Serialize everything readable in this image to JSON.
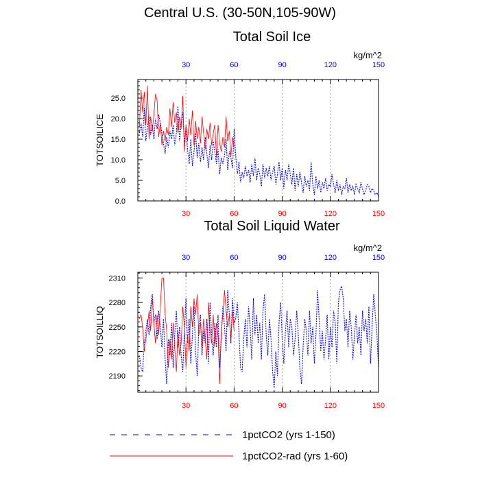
{
  "page_title": "Central U.S. (30-50N,105-90W)",
  "legend": {
    "entries": [
      {
        "label": "1pctCO2 (yrs 1-150)",
        "color": "#0000ff",
        "dashed": true
      },
      {
        "label": "1pctCO2-rad (yrs 1-60)",
        "color": "#ff0000",
        "dashed": false
      }
    ]
  },
  "chart_data": [
    {
      "type": "line",
      "title": "Total Soil Ice",
      "units": "kg/m^2",
      "ylabel": "TOTSOILICE",
      "xlim": [
        0,
        150
      ],
      "ylim": [
        0,
        29.5
      ],
      "yticks": [
        0,
        5,
        10,
        15,
        20,
        25
      ],
      "ytick_labels": [
        "0.0",
        "5.0",
        "10.0",
        "15.0",
        "20.0",
        "25.0"
      ],
      "xticks_top": [
        30,
        60,
        90,
        120,
        150
      ],
      "xticks_bottom": [
        30,
        60,
        90,
        120,
        150
      ],
      "top_tick_color": "#0000ff",
      "bottom_tick_color": "#ff0000",
      "grid_x": [
        30,
        60,
        90,
        120
      ],
      "series": [
        {
          "name": "1pctCO2 (yrs 1-150)",
          "color": "#0000ff",
          "dashed": true,
          "x_start": 1,
          "values": [
            16.5,
            19.0,
            15.5,
            22.5,
            14.5,
            18.0,
            20.5,
            16.0,
            18.5,
            15.0,
            20.0,
            17.5,
            21.0,
            19.0,
            16.5,
            14.0,
            11.5,
            15.5,
            13.0,
            17.0,
            15.0,
            18.5,
            13.5,
            16.5,
            23.0,
            14.5,
            19.0,
            21.5,
            14.0,
            18.0,
            12.5,
            9.0,
            15.0,
            8.5,
            12.0,
            16.5,
            10.5,
            14.0,
            9.5,
            13.0,
            10.0,
            15.5,
            11.5,
            8.0,
            13.5,
            10.0,
            14.5,
            12.0,
            9.0,
            12.5,
            6.5,
            10.5,
            9.0,
            11.0,
            15.0,
            7.5,
            12.0,
            10.5,
            8.0,
            17.5,
            11.0,
            6.5,
            9.5,
            4.5,
            7.0,
            5.5,
            8.5,
            6.0,
            7.5,
            4.5,
            9.0,
            6.0,
            10.5,
            5.0,
            8.0,
            6.5,
            3.5,
            9.0,
            5.5,
            8.0,
            6.0,
            8.5,
            5.0,
            7.0,
            8.5,
            4.0,
            6.5,
            9.5,
            5.0,
            8.0,
            3.0,
            7.5,
            5.0,
            9.0,
            6.5,
            4.0,
            8.0,
            2.5,
            6.5,
            3.5,
            7.0,
            4.5,
            2.0,
            6.0,
            3.5,
            5.0,
            2.5,
            9.5,
            4.0,
            1.5,
            6.0,
            3.0,
            5.0,
            2.0,
            4.5,
            3.0,
            5.5,
            2.5,
            4.0,
            3.5,
            6.5,
            4.0,
            2.0,
            5.0,
            2.5,
            4.0,
            1.5,
            3.5,
            3.0,
            5.5,
            2.0,
            4.0,
            2.5,
            3.5,
            1.5,
            4.0,
            3.0,
            2.0,
            4.5,
            3.0,
            1.5,
            2.5,
            4.0,
            3.5,
            2.0,
            3.0,
            2.5,
            1.5,
            2.0,
            1.0
          ]
        },
        {
          "name": "1pctCO2-rad (yrs 1-60)",
          "color": "#ff0000",
          "dashed": false,
          "x_start": 1,
          "values": [
            18.0,
            27.0,
            21.5,
            26.5,
            18.5,
            28.0,
            15.0,
            20.5,
            17.0,
            21.0,
            26.0,
            24.5,
            15.5,
            19.0,
            13.5,
            17.0,
            14.5,
            18.0,
            16.0,
            22.5,
            18.0,
            24.0,
            19.0,
            21.5,
            16.5,
            20.5,
            17.5,
            25.5,
            12.0,
            18.5,
            14.5,
            20.0,
            16.0,
            22.0,
            13.5,
            19.5,
            15.0,
            18.0,
            14.0,
            20.5,
            16.5,
            12.5,
            17.5,
            15.0,
            19.0,
            13.5,
            16.5,
            18.5,
            10.5,
            18.5,
            14.0,
            12.0,
            15.5,
            13.0,
            20.5,
            14.5,
            17.0,
            11.0,
            15.5,
            13.0
          ]
        }
      ]
    },
    {
      "type": "line",
      "title": "Total Soil Liquid Water",
      "units": "kg/m^2",
      "ylabel": "TOTSOILLIQ",
      "xlim": [
        0,
        150
      ],
      "ylim": [
        2170,
        2317
      ],
      "yticks": [
        2190,
        2220,
        2250,
        2280,
        2310
      ],
      "ytick_labels": [
        "2190",
        "2220",
        "2250",
        "2280",
        "2310"
      ],
      "xticks_top": [
        30,
        60,
        90,
        120,
        150
      ],
      "xticks_bottom": [
        30,
        60,
        90,
        120,
        150
      ],
      "top_tick_color": "#0000ff",
      "bottom_tick_color": "#ff0000",
      "grid_x": [
        30,
        60,
        90,
        120
      ],
      "series": [
        {
          "name": "1pctCO2 (yrs 1-150)",
          "color": "#0000ff",
          "dashed": true,
          "x_start": 1,
          "values": [
            2215,
            2200,
            2195,
            2230,
            2245,
            2260,
            2240,
            2275,
            2290,
            2255,
            2265,
            2235,
            2270,
            2250,
            2225,
            2260,
            2210,
            2180,
            2235,
            2215,
            2255,
            2200,
            2240,
            2270,
            2225,
            2250,
            2215,
            2195,
            2245,
            2285,
            2230,
            2260,
            2205,
            2240,
            2275,
            2220,
            2190,
            2250,
            2265,
            2215,
            2245,
            2230,
            2260,
            2205,
            2280,
            2240,
            2215,
            2255,
            2225,
            2265,
            2200,
            2240,
            2275,
            2250,
            2220,
            2295,
            2265,
            2230,
            2285,
            2255,
            2260,
            2280,
            2245,
            2200,
            2195,
            2235,
            2260,
            2225,
            2275,
            2250,
            2210,
            2285,
            2240,
            2265,
            2230,
            2255,
            2210,
            2270,
            2290,
            2240,
            2215,
            2260,
            2235,
            2195,
            2175,
            2220,
            2190,
            2255,
            2280,
            2235,
            2205,
            2245,
            2270,
            2225,
            2260,
            2250,
            2215,
            2235,
            2270,
            2240,
            2200,
            2180,
            2225,
            2260,
            2245,
            2215,
            2270,
            2230,
            2250,
            2205,
            2240,
            2295,
            2260,
            2220,
            2245,
            2210,
            2235,
            2265,
            2210,
            2250,
            2225,
            2270,
            2255,
            2205,
            2280,
            2295,
            2300,
            2285,
            2245,
            2260,
            2225,
            2270,
            2250,
            2210,
            2240,
            2265,
            2230,
            2250,
            2215,
            2270,
            2245,
            2260,
            2230,
            2275,
            2205,
            2250,
            2290,
            2265,
            2240,
            2200
          ]
        },
        {
          "name": "1pctCO2-rad (yrs 1-60)",
          "color": "#ff0000",
          "dashed": false,
          "x_start": 1,
          "values": [
            2260,
            2265,
            2250,
            2220,
            2235,
            2250,
            2270,
            2245,
            2285,
            2255,
            2230,
            2265,
            2240,
            2275,
            2310,
            2310,
            2265,
            2245,
            2200,
            2235,
            2210,
            2255,
            2225,
            2195,
            2245,
            2215,
            2230,
            2275,
            2250,
            2200,
            2240,
            2220,
            2275,
            2250,
            2285,
            2265,
            2290,
            2240,
            2255,
            2225,
            2260,
            2235,
            2210,
            2280,
            2245,
            2230,
            2265,
            2225,
            2255,
            2240,
            2180,
            2245,
            2265,
            2295,
            2270,
            2250,
            2265,
            2235,
            2270,
            2245
          ]
        }
      ]
    }
  ]
}
